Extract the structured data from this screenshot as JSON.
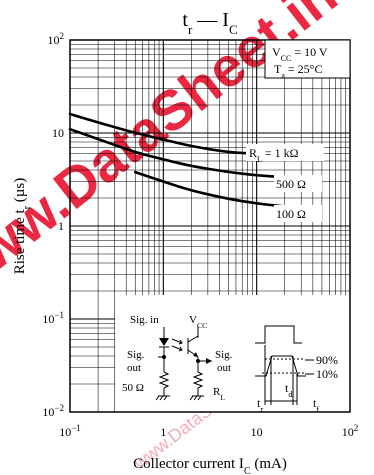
{
  "chart_data": {
    "type": "line",
    "title": {
      "main": "t",
      "sub": "r",
      "mid": " — I",
      "sub2": "C"
    },
    "xlabel": {
      "main": "Collector current  I",
      "sub": "C",
      "tail": "  (mA)"
    },
    "ylabel": {
      "main": "Rise time  t",
      "sub": "r",
      "tail": "  (µs)"
    },
    "x_scale": "log",
    "y_scale": "log",
    "xlim": [
      0.1,
      100
    ],
    "ylim": [
      0.01,
      100
    ],
    "grid": true,
    "x_ticks": [
      {
        "base": "10",
        "exp": "−1"
      },
      {
        "base": "1",
        "exp": ""
      },
      {
        "base": "10",
        "exp": ""
      },
      {
        "base": "10",
        "exp": "2"
      }
    ],
    "y_ticks": [
      {
        "base": "10",
        "exp": "−2"
      },
      {
        "base": "10",
        "exp": "−1"
      },
      {
        "base": "1",
        "exp": ""
      },
      {
        "base": "10",
        "exp": ""
      },
      {
        "base": "10",
        "exp": "2"
      }
    ],
    "conditions": {
      "vcc": {
        "main": "V",
        "sub": "CC",
        "tail": " = 10 V"
      },
      "ta": {
        "main": "T",
        "sub": "a",
        "tail": " = 25°C"
      }
    },
    "series": [
      {
        "name": {
          "main": "R",
          "sub": "L",
          "tail": " = 1 kΩ"
        },
        "x": [
          0.1,
          0.2,
          0.5,
          1,
          2,
          5,
          10
        ],
        "y": [
          16,
          13,
          10,
          8.5,
          7.2,
          6.2,
          6.0
        ]
      },
      {
        "name": {
          "main": "500 Ω",
          "sub": "",
          "tail": ""
        },
        "x": [
          0.1,
          0.2,
          0.5,
          1,
          2,
          5,
          10,
          20,
          30
        ],
        "y": [
          11,
          8.6,
          6.2,
          5.2,
          4.4,
          3.8,
          3.5,
          3.35,
          3.3
        ]
      },
      {
        "name": {
          "main": "100 Ω",
          "sub": "",
          "tail": ""
        },
        "x": [
          0.5,
          1,
          2,
          5,
          10,
          20,
          30
        ],
        "y": [
          3.8,
          3.0,
          2.4,
          1.95,
          1.75,
          1.62,
          1.6
        ]
      }
    ],
    "inset": {
      "sig_in": "Sig. in",
      "vcc": {
        "main": "V",
        "sub": "CC"
      },
      "sig_out_left": [
        "Sig.",
        "out"
      ],
      "r50": "50 Ω",
      "sig_out_right": [
        "Sig.",
        "out"
      ],
      "rl": {
        "main": "R",
        "sub": "L"
      },
      "p90": "90%",
      "p10": "10%",
      "tr": {
        "main": "t",
        "sub": "r"
      },
      "td": {
        "main": "t",
        "sub": "d"
      },
      "tf": {
        "main": "t",
        "sub": "f"
      }
    },
    "watermark": "www.DataSheet.in"
  }
}
